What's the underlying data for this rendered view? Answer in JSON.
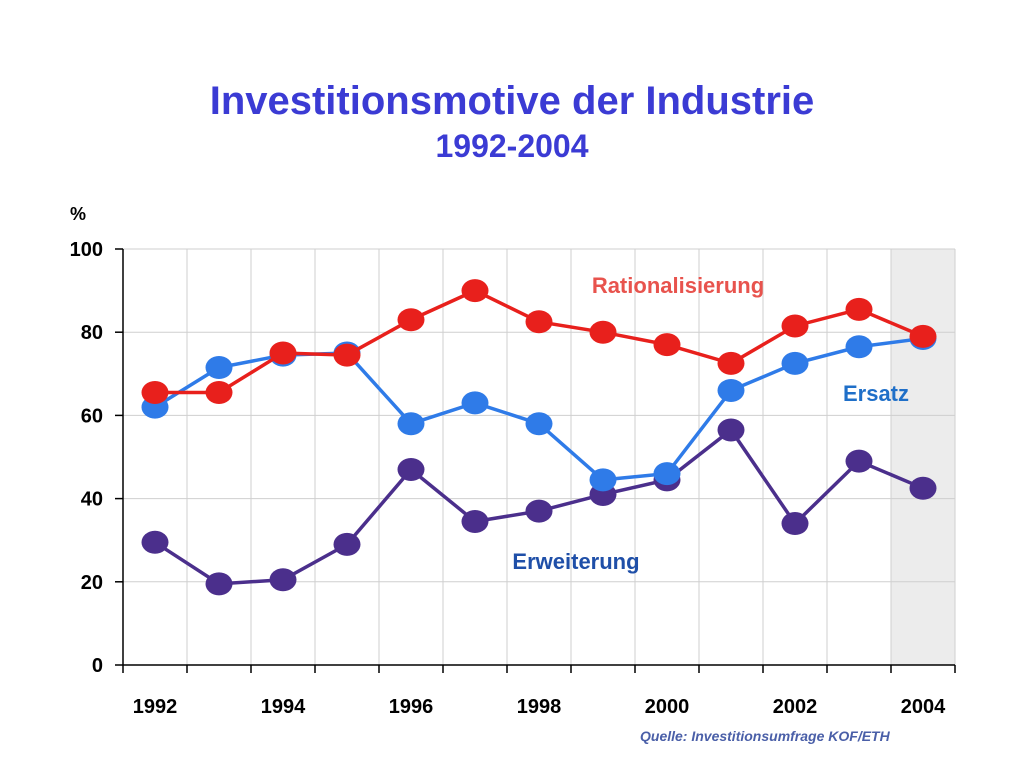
{
  "chart_data": {
    "type": "line",
    "title": "Investitionsmotive der Industrie",
    "subtitle": "1992-2004",
    "ylabel": "%",
    "xlabel": "",
    "ylim": [
      0,
      100
    ],
    "yticks": [
      "0",
      "20",
      "40",
      "60",
      "80",
      "100"
    ],
    "xticks": [
      "1992",
      "1994",
      "1996",
      "1998",
      "2000",
      "2002",
      "2004"
    ],
    "x": [
      1992.5,
      1993.5,
      1994.5,
      1995.5,
      1996.5,
      1997.5,
      1998.5,
      1999.5,
      2000.5,
      2001.5,
      2002.5,
      2003.5,
      2004.5
    ],
    "grid": true,
    "shaded_period": [
      2004,
      2005
    ],
    "series": [
      {
        "name": "Rationalisierung",
        "color": "#e8201c",
        "values": [
          65.5,
          65.5,
          75,
          74.5,
          83,
          90,
          82.5,
          80,
          77,
          72.5,
          81.5,
          85.5,
          79
        ]
      },
      {
        "name": "Ersatz",
        "color": "#2f7be8",
        "values": [
          62,
          71.5,
          74.5,
          75,
          58,
          63,
          58,
          44.5,
          46,
          66,
          72.5,
          76.5,
          78.5
        ]
      },
      {
        "name": "Erweiterung",
        "color": "#4b2f8c",
        "values": [
          29.5,
          19.5,
          20.5,
          29,
          47,
          34.5,
          37,
          41,
          44.5,
          56.5,
          34,
          49,
          42.5
        ]
      }
    ],
    "series_label_colors": {
      "Rationalisierung": "#e8534d",
      "Ersatz": "#1f6fc8",
      "Erweiterung": "#1f4fa8"
    }
  },
  "source": "Quelle: Investitionsumfrage KOF/ETH"
}
